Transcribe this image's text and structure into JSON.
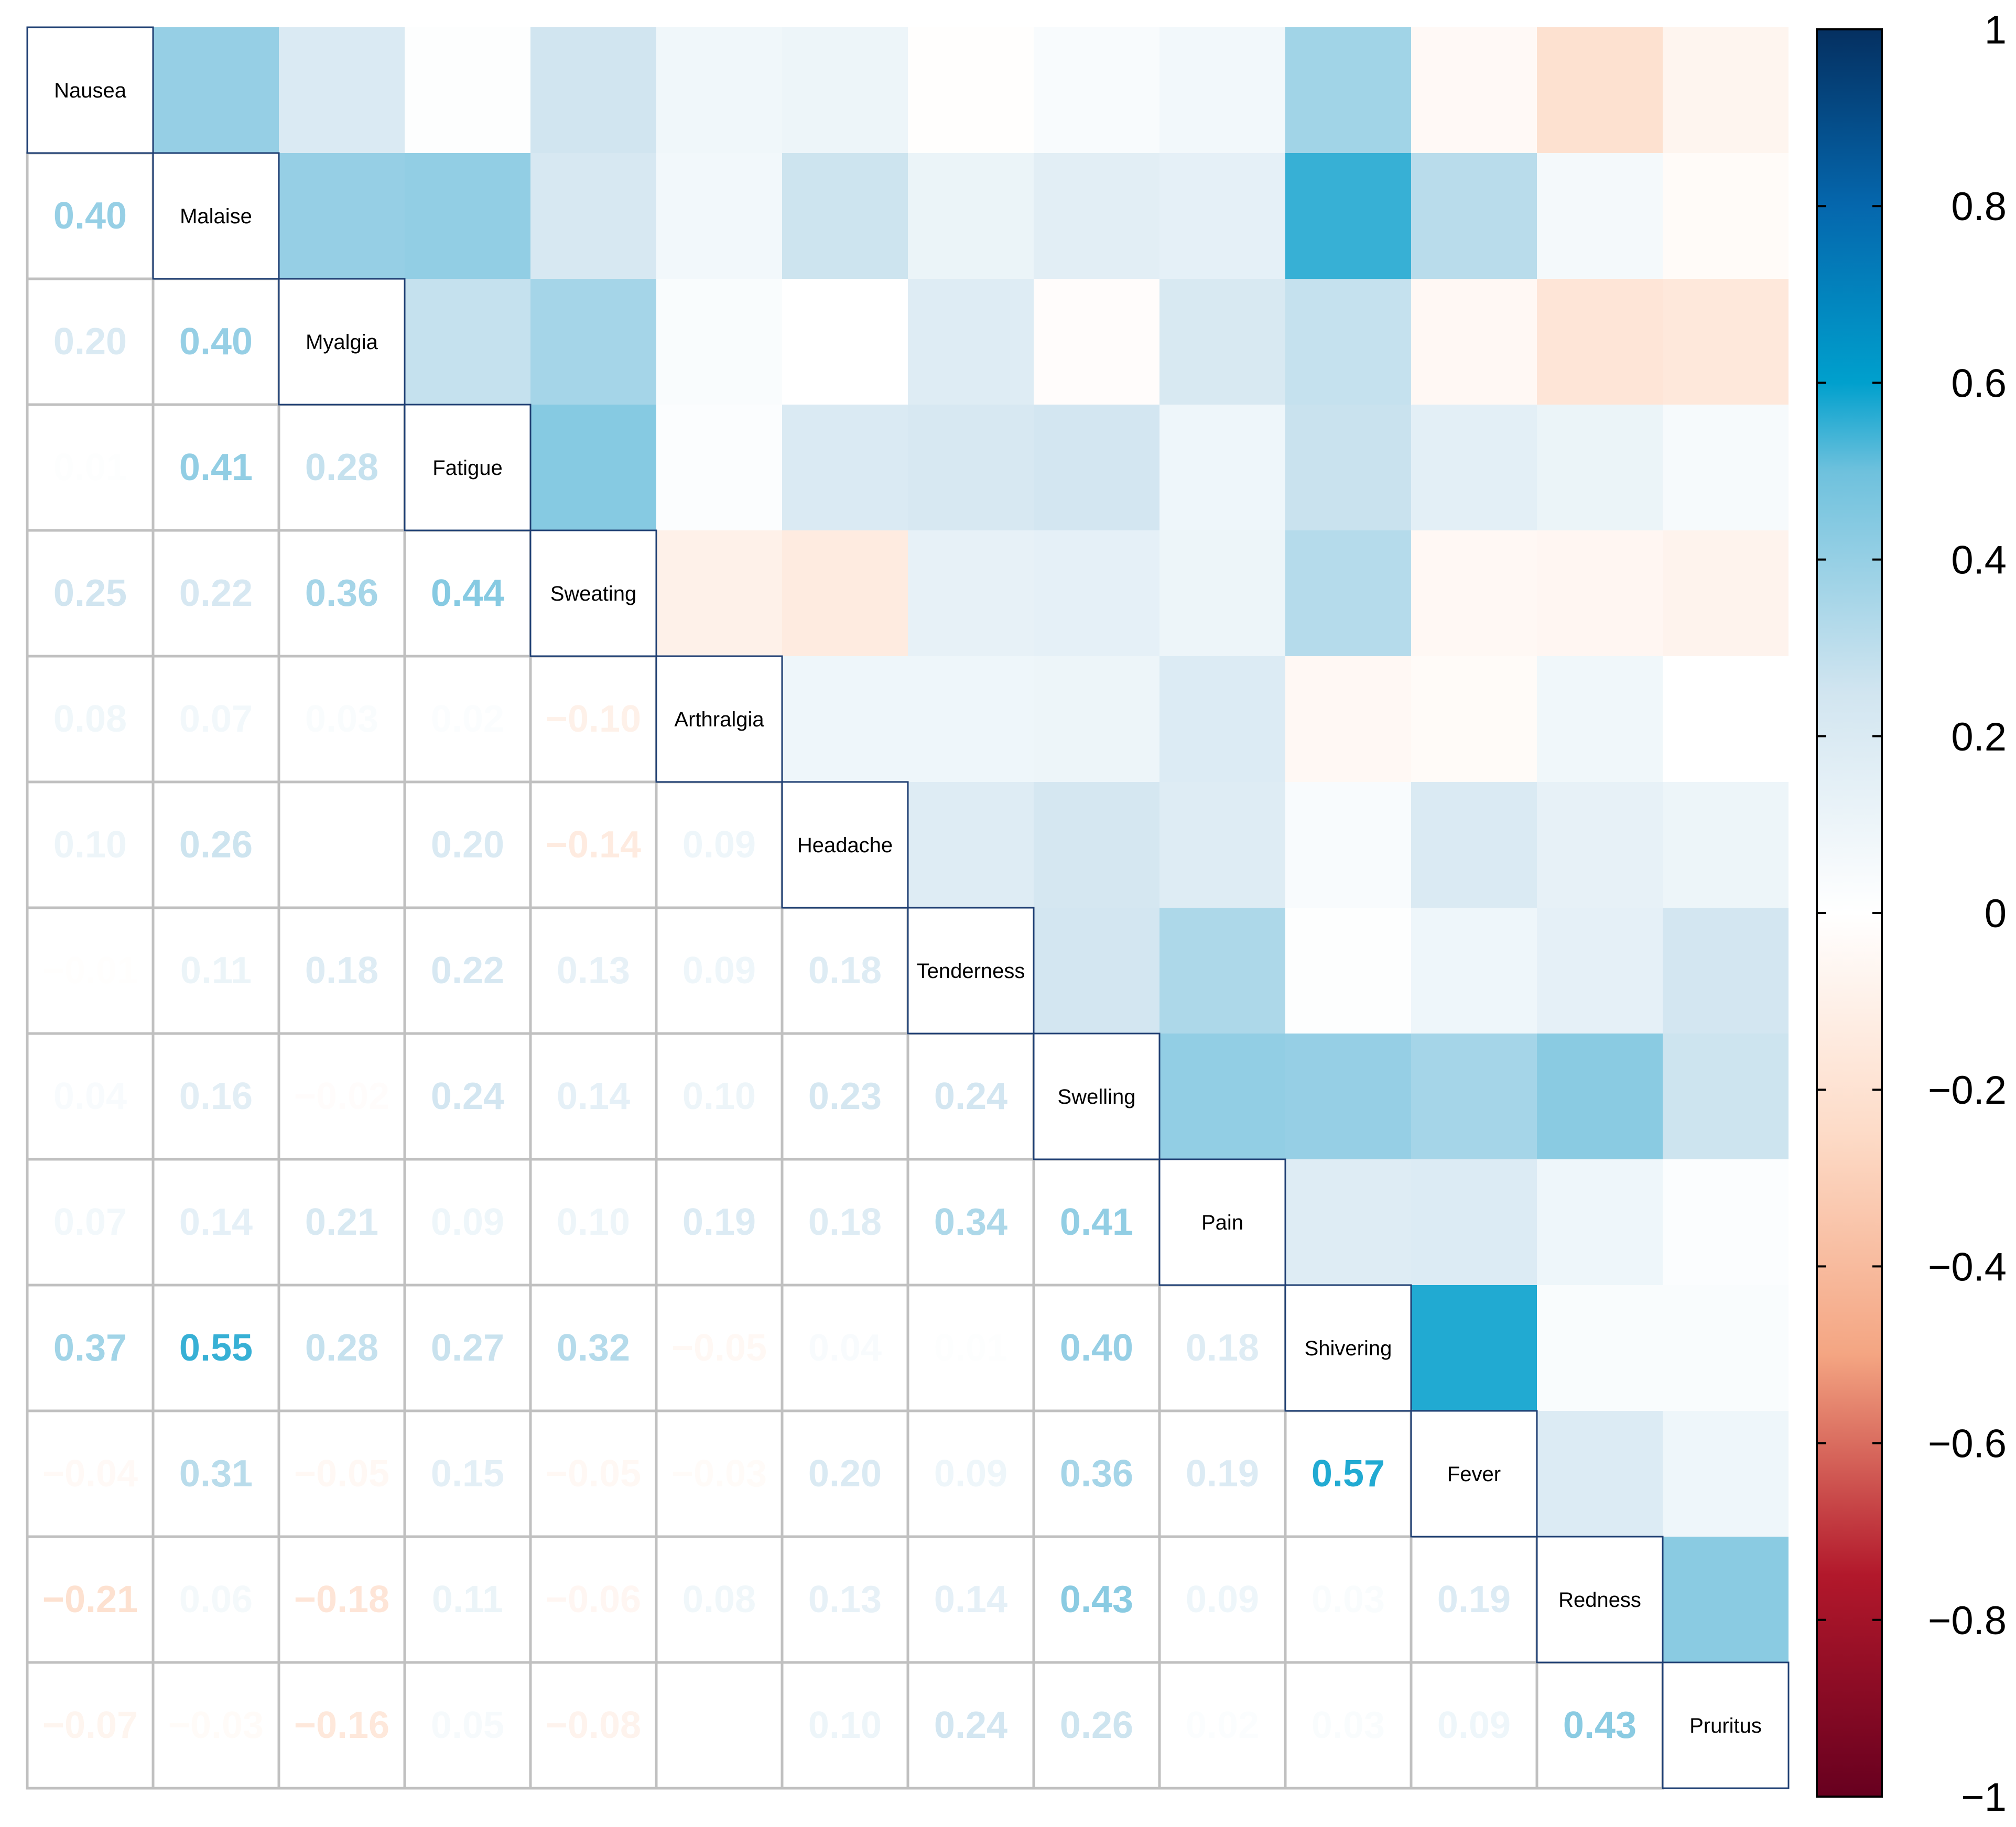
{
  "chart_data": {
    "type": "heatmap",
    "subtype": "mixed-correlation-matrix",
    "upper_triangle": "colored squares",
    "lower_triangle": "numeric coefficients (2 decimals)",
    "variables": [
      "Nausea",
      "Malaise",
      "Myalgia",
      "Fatigue",
      "Sweating",
      "Arthralgia",
      "Headache",
      "Tenderness",
      "Swelling",
      "Pain",
      "Shivering",
      "Fever",
      "Redness",
      "Pruritus"
    ],
    "matrix": [
      [
        1.0,
        0.4,
        0.2,
        0.01,
        0.25,
        0.08,
        0.1,
        -0.01,
        0.04,
        0.07,
        0.37,
        -0.04,
        -0.21,
        -0.07
      ],
      [
        0.4,
        1.0,
        0.4,
        0.41,
        0.22,
        0.07,
        0.26,
        0.11,
        0.16,
        0.14,
        0.55,
        0.31,
        0.06,
        -0.03
      ],
      [
        0.2,
        0.4,
        1.0,
        0.28,
        0.36,
        0.03,
        0.0,
        0.18,
        -0.02,
        0.21,
        0.28,
        -0.05,
        -0.18,
        -0.16
      ],
      [
        0.01,
        0.41,
        0.28,
        1.0,
        0.44,
        0.02,
        0.2,
        0.22,
        0.24,
        0.09,
        0.27,
        0.15,
        0.11,
        0.05
      ],
      [
        0.25,
        0.22,
        0.36,
        0.44,
        1.0,
        -0.1,
        -0.14,
        0.13,
        0.14,
        0.1,
        0.32,
        -0.05,
        -0.06,
        -0.08
      ],
      [
        0.08,
        0.07,
        0.03,
        0.02,
        -0.1,
        1.0,
        0.09,
        0.09,
        0.1,
        0.19,
        -0.05,
        -0.03,
        0.08,
        0.0
      ],
      [
        0.1,
        0.26,
        0.0,
        0.2,
        -0.14,
        0.09,
        1.0,
        0.18,
        0.23,
        0.18,
        0.04,
        0.2,
        0.13,
        0.1
      ],
      [
        -0.01,
        0.11,
        0.18,
        0.22,
        0.13,
        0.09,
        0.18,
        1.0,
        0.24,
        0.34,
        0.01,
        0.09,
        0.14,
        0.24
      ],
      [
        0.04,
        0.16,
        -0.02,
        0.24,
        0.14,
        0.1,
        0.23,
        0.24,
        1.0,
        0.41,
        0.4,
        0.36,
        0.43,
        0.26
      ],
      [
        0.07,
        0.14,
        0.21,
        0.09,
        0.1,
        0.19,
        0.18,
        0.34,
        0.41,
        1.0,
        0.18,
        0.19,
        0.09,
        0.02
      ],
      [
        0.37,
        0.55,
        0.28,
        0.27,
        0.32,
        -0.05,
        0.04,
        0.01,
        0.4,
        0.18,
        1.0,
        0.57,
        0.03,
        0.03
      ],
      [
        -0.04,
        0.31,
        -0.05,
        0.15,
        -0.05,
        -0.03,
        0.2,
        0.09,
        0.36,
        0.19,
        0.57,
        1.0,
        0.19,
        0.09
      ],
      [
        -0.21,
        0.06,
        -0.18,
        0.11,
        -0.06,
        0.08,
        0.13,
        0.14,
        0.43,
        0.09,
        0.03,
        0.19,
        1.0,
        0.43
      ],
      [
        -0.07,
        -0.03,
        -0.16,
        0.05,
        -0.08,
        0.0,
        0.1,
        0.24,
        0.26,
        0.02,
        0.03,
        0.09,
        0.43,
        1.0
      ]
    ],
    "color_scale": {
      "range": [
        -1,
        1
      ],
      "ticks": [
        "1",
        "0.8",
        "0.6",
        "0.4",
        "0.2",
        "0",
        "−0.2",
        "−0.4",
        "−0.6",
        "−0.8",
        "−1"
      ],
      "stops": [
        {
          "v": -1.0,
          "c": "#67001f"
        },
        {
          "v": -0.75,
          "c": "#b2182b"
        },
        {
          "v": -0.5,
          "c": "#f4a582"
        },
        {
          "v": -0.25,
          "c": "#fddbc7"
        },
        {
          "v": 0.0,
          "c": "#ffffff"
        },
        {
          "v": 0.25,
          "c": "#d1e5f0"
        },
        {
          "v": 0.5,
          "c": "#6ec1dd"
        },
        {
          "v": 0.6,
          "c": "#00a0cd"
        },
        {
          "v": 0.8,
          "c": "#0567ad"
        },
        {
          "v": 1.0,
          "c": "#053061"
        }
      ]
    },
    "title": "",
    "xlabel": "",
    "ylabel": "",
    "legend": "right"
  }
}
